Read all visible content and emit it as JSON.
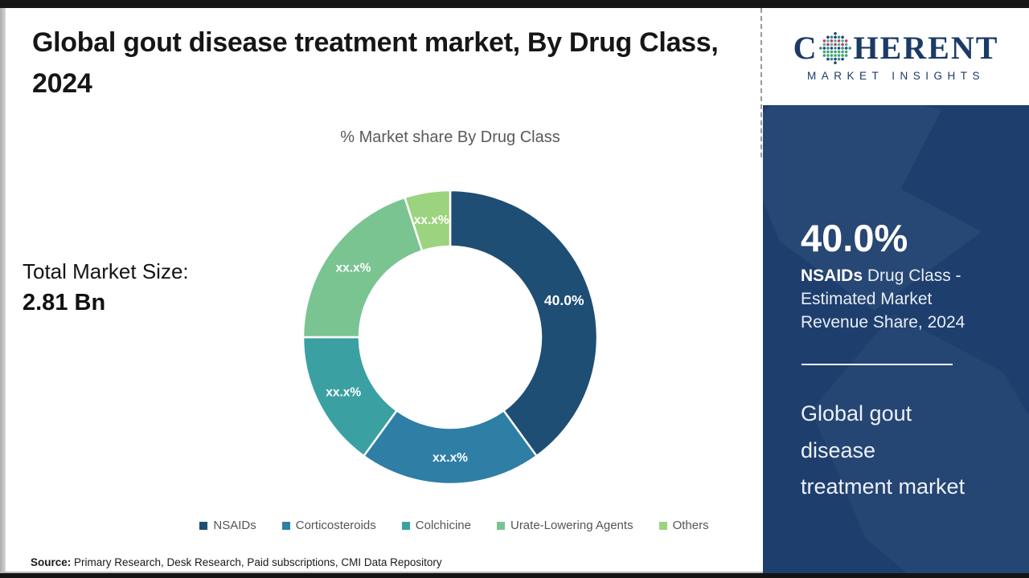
{
  "header": {
    "title": "Global gout disease treatment market, By Drug Class, 2024"
  },
  "total_market": {
    "label": "Total Market Size:",
    "value": "2.81 Bn"
  },
  "chart_data": {
    "type": "pie",
    "variant": "donut",
    "title": "% Market share By Drug Class",
    "categories": [
      "NSAIDs",
      "Corticosteroids",
      "Colchicine",
      "Urate-Lowering Agents",
      "Others"
    ],
    "values": [
      40,
      20,
      15,
      20,
      5
    ],
    "value_labels": [
      "40.0%",
      "xx.x%",
      "xx.x%",
      "xx.x%",
      "xx.x%"
    ],
    "colors": [
      "#1F4E74",
      "#2E7EA6",
      "#3BA0A2",
      "#7AC492",
      "#9CD37E"
    ],
    "legend_position": "bottom",
    "start_angle_deg": 0,
    "direction": "clockwise"
  },
  "source": {
    "prefix": "Source:",
    "text": " Primary Research, Desk Research, Paid subscriptions, CMI Data Repository"
  },
  "sidebar": {
    "logo": {
      "brand_start": "C",
      "brand_end": "HERENT",
      "tagline": "MARKET INSIGHTS",
      "globe_palette": [
        "#2E8F8C",
        "#4CA64C",
        "#83BC55",
        "#B93C7C",
        "#22427A",
        "#37A0A3",
        "#C04B8F",
        "#5BB08A"
      ]
    },
    "stat": {
      "value": "40.0%",
      "desc_bold": "NSAIDs",
      "desc_rest": " Drug Class - Estimated Market Revenue Share, 2024"
    },
    "heading": "Global gout disease treatment market"
  },
  "colors": {
    "sidebar_bg": "#1E3F6E",
    "logo_navy": "#1B3A66",
    "title_text": "#161616",
    "muted_text": "#595959",
    "slice_label": "#ffffff"
  }
}
